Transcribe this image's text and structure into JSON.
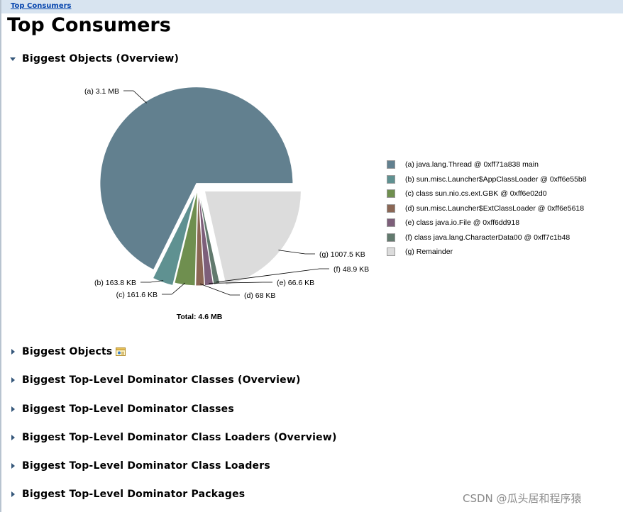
{
  "breadcrumb": {
    "link": "Top Consumers"
  },
  "page_title": "Top Consumers",
  "sections": [
    {
      "label": "Biggest Objects (Overview)",
      "expanded": true
    },
    {
      "label": "Biggest Objects",
      "expanded": false,
      "icon": "object-list-icon"
    },
    {
      "label": "Biggest Top-Level Dominator Classes (Overview)",
      "expanded": false
    },
    {
      "label": "Biggest Top-Level Dominator Classes",
      "expanded": false
    },
    {
      "label": "Biggest Top-Level Dominator Class Loaders (Overview)",
      "expanded": false
    },
    {
      "label": "Biggest Top-Level Dominator Class Loaders",
      "expanded": false
    },
    {
      "label": "Biggest Top-Level Dominator Packages",
      "expanded": false
    }
  ],
  "chart_data": {
    "type": "pie",
    "total_label": "Total: 4.6 MB",
    "slices": [
      {
        "key": "(a)",
        "value_label": "3.1 MB",
        "value_kb": 3174.4,
        "name": "java.lang.Thread @ 0xff71a838  main",
        "color": "#62808f"
      },
      {
        "key": "(b)",
        "value_label": "163.8 KB",
        "value_kb": 163.8,
        "name": "sun.misc.Launcher$AppClassLoader @ 0xff6e55b8",
        "color": "#5f9191"
      },
      {
        "key": "(c)",
        "value_label": "161.6 KB",
        "value_kb": 161.6,
        "name": "class sun.nio.cs.ext.GBK @ 0xff6e02d0",
        "color": "#6f8f4f"
      },
      {
        "key": "(d)",
        "value_label": "68 KB",
        "value_kb": 68,
        "name": "sun.misc.Launcher$ExtClassLoader @ 0xff6e5618",
        "color": "#8b6755"
      },
      {
        "key": "(e)",
        "value_label": "66.6 KB",
        "value_kb": 66.6,
        "name": "class java.io.File @ 0xff6dd918",
        "color": "#7d5f7a"
      },
      {
        "key": "(f)",
        "value_label": "48.9 KB",
        "value_kb": 48.9,
        "name": "class java.lang.CharacterData00 @ 0xff7c1b48",
        "color": "#627a6e"
      },
      {
        "key": "(g)",
        "value_label": "1007.5 KB",
        "value_kb": 1007.5,
        "name": "Remainder",
        "color": "#dcdcdc"
      }
    ]
  },
  "watermark": "CSDN @瓜头居和程序猿"
}
